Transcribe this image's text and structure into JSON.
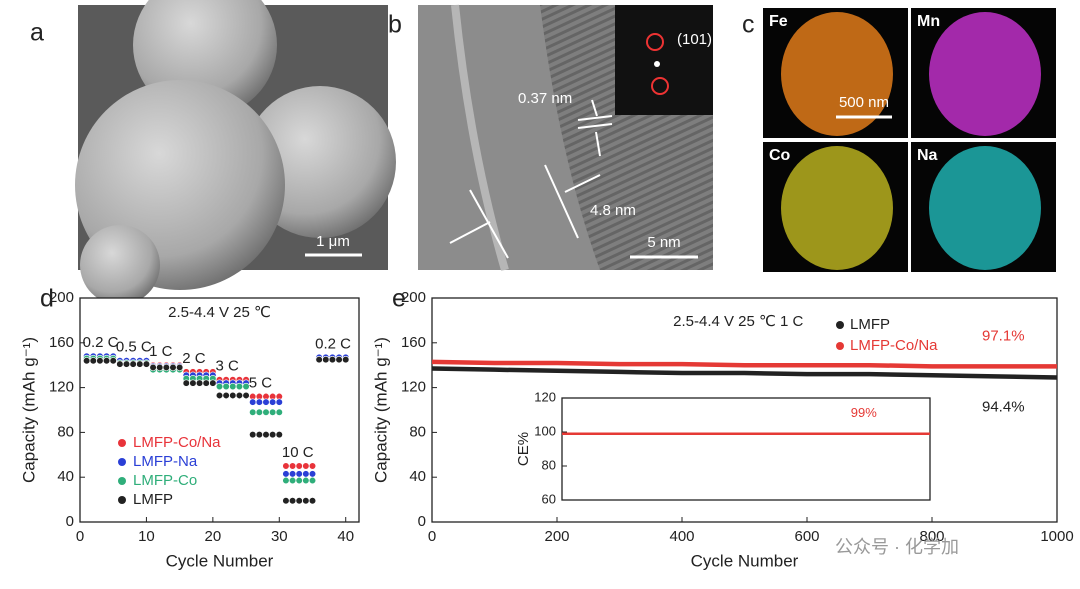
{
  "image_panels": [
    {
      "label": "a",
      "scale_bar": "1 μm"
    },
    {
      "label": "b",
      "scale_bar": "5 nm",
      "spacing_labels": [
        "0.37 nm",
        "4.8 nm"
      ],
      "fft_label": "(101)"
    },
    {
      "label": "c",
      "scale_bar": "500 nm",
      "maps": [
        {
          "element": "Fe",
          "color": "#e07b1a"
        },
        {
          "element": "Mn",
          "color": "#c030c8"
        },
        {
          "element": "Co",
          "color": "#b8b020"
        },
        {
          "element": "Na",
          "color": "#20b0b0"
        }
      ]
    }
  ],
  "watermark": "公众号 · 化学加",
  "chart_data": [
    {
      "type": "scatter",
      "panel_label": "d",
      "annotation": "2.5-4.4 V 25 ℃",
      "x_label": "Cycle Number",
      "y_label": "Capacity (mAh g⁻¹)",
      "xlim": [
        0,
        42
      ],
      "xticks": [
        0,
        10,
        20,
        30,
        40
      ],
      "ylim": [
        0,
        200
      ],
      "yticks": [
        0,
        40,
        80,
        120,
        160,
        200
      ],
      "legend": "center left",
      "rate_labels": [
        "0.2 C",
        "0.5 C",
        "1 C",
        "2 C",
        "3 C",
        "5 C",
        "10 C",
        "0.2 C"
      ],
      "x": [
        1,
        2,
        3,
        4,
        5,
        6,
        7,
        8,
        9,
        10,
        11,
        12,
        13,
        14,
        15,
        16,
        17,
        18,
        19,
        20,
        21,
        22,
        23,
        24,
        25,
        26,
        27,
        28,
        29,
        30,
        31,
        32,
        33,
        34,
        35,
        36,
        37,
        38,
        39,
        40
      ],
      "series": [
        {
          "name": "LMFP-Co/Na",
          "color": "#e8333a",
          "values": [
            145,
            145,
            145,
            145,
            145,
            143,
            143,
            143,
            143,
            143,
            140,
            140,
            140,
            140,
            140,
            134,
            134,
            134,
            134,
            134,
            127,
            127,
            127,
            127,
            127,
            112,
            112,
            112,
            112,
            112,
            50,
            50,
            50,
            50,
            50,
            146,
            146,
            146,
            146,
            146
          ]
        },
        {
          "name": "LMFP-Na",
          "color": "#2a3fd6",
          "values": [
            148,
            148,
            148,
            148,
            148,
            144,
            144,
            144,
            144,
            144,
            139,
            139,
            139,
            139,
            139,
            131,
            131,
            131,
            131,
            131,
            124,
            124,
            124,
            124,
            124,
            107,
            107,
            107,
            107,
            107,
            43,
            43,
            43,
            43,
            43,
            147,
            147,
            147,
            147,
            147
          ]
        },
        {
          "name": "LMFP-Co",
          "color": "#2fae7a",
          "values": [
            146,
            146,
            146,
            146,
            146,
            142,
            142,
            142,
            142,
            142,
            136,
            136,
            136,
            136,
            136,
            128,
            128,
            128,
            128,
            128,
            121,
            121,
            121,
            121,
            121,
            98,
            98,
            98,
            98,
            98,
            37,
            37,
            37,
            37,
            37,
            145,
            145,
            145,
            145,
            145
          ]
        },
        {
          "name": "LMFP",
          "color": "#222222",
          "values": [
            144,
            144,
            144,
            144,
            144,
            141,
            141,
            141,
            141,
            141,
            138,
            138,
            138,
            138,
            138,
            124,
            124,
            124,
            124,
            124,
            113,
            113,
            113,
            113,
            113,
            78,
            78,
            78,
            78,
            78,
            19,
            19,
            19,
            19,
            19,
            145,
            145,
            145,
            145,
            145
          ]
        }
      ]
    },
    {
      "type": "line",
      "panel_label": "e",
      "annotation": "2.5-4.4 V 25 ℃ 1 C",
      "x_label": "Cycle Number",
      "y_label": "Capacity (mAh g⁻¹)",
      "xlim": [
        0,
        1000
      ],
      "xticks": [
        0,
        200,
        400,
        600,
        800,
        1000
      ],
      "ylim": [
        0,
        200
      ],
      "yticks": [
        0,
        40,
        80,
        120,
        160,
        200
      ],
      "legend": "top center",
      "x": [
        0,
        100,
        200,
        300,
        400,
        500,
        600,
        700,
        800,
        900,
        1000
      ],
      "series": [
        {
          "name": "LMFP",
          "color": "#222222",
          "values": [
            137,
            136,
            135,
            134,
            133,
            133,
            132,
            132,
            131,
            130,
            129
          ],
          "end_label": "94.4%"
        },
        {
          "name": "LMFP-Co/Na",
          "color": "#e53935",
          "values": [
            143,
            142,
            142,
            141,
            141,
            140,
            140,
            140,
            139,
            139,
            139
          ],
          "end_label": "97.1%"
        }
      ]
    },
    {
      "type": "line",
      "y_label": "CE%",
      "annotation": "99%",
      "xlim": [
        0,
        1000
      ],
      "ylim": [
        60,
        120
      ],
      "yticks": [
        60,
        80,
        100,
        120
      ],
      "x": [
        0,
        100,
        200,
        300,
        400,
        500,
        600,
        700,
        800,
        900,
        1000
      ],
      "series": [
        {
          "color": "#e53935",
          "values": [
            99,
            99,
            99,
            99,
            99,
            99,
            99,
            99,
            99,
            99,
            99
          ]
        }
      ]
    }
  ]
}
